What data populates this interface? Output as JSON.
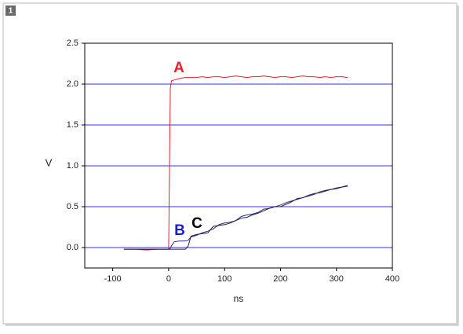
{
  "badge": "1",
  "chart_data": {
    "type": "line",
    "x_label": "ns",
    "y_label": "V",
    "x": [
      -80,
      -60,
      -40,
      -20,
      0,
      3,
      5,
      10,
      20,
      30,
      35,
      40,
      50,
      60,
      70,
      80,
      90,
      100,
      110,
      120,
      130,
      140,
      150,
      160,
      170,
      180,
      190,
      200,
      210,
      220,
      230,
      240,
      250,
      260,
      270,
      280,
      290,
      300,
      310,
      320
    ],
    "series": [
      {
        "name": "A",
        "color": "#e8202a",
        "values": [
          -0.02,
          -0.02,
          -0.03,
          -0.02,
          -0.02,
          1.95,
          2.04,
          2.05,
          2.07,
          2.08,
          2.08,
          2.08,
          2.08,
          2.09,
          2.08,
          2.09,
          2.09,
          2.08,
          2.09,
          2.1,
          2.09,
          2.08,
          2.09,
          2.09,
          2.1,
          2.09,
          2.08,
          2.09,
          2.09,
          2.08,
          2.09,
          2.1,
          2.09,
          2.09,
          2.08,
          2.09,
          2.08,
          2.09,
          2.09,
          2.08
        ]
      },
      {
        "name": "B",
        "color": "#2a2a9a",
        "values": [
          -0.02,
          -0.02,
          -0.02,
          -0.02,
          -0.02,
          -0.01,
          0.02,
          0.07,
          0.08,
          0.08,
          0.09,
          0.13,
          0.15,
          0.18,
          0.2,
          0.23,
          0.28,
          0.3,
          0.31,
          0.33,
          0.38,
          0.4,
          0.41,
          0.43,
          0.47,
          0.48,
          0.5,
          0.52,
          0.55,
          0.57,
          0.59,
          0.61,
          0.63,
          0.65,
          0.68,
          0.7,
          0.71,
          0.72,
          0.74,
          0.75
        ]
      },
      {
        "name": "C",
        "color": "#222233",
        "values": [
          -0.02,
          -0.02,
          -0.02,
          -0.02,
          -0.02,
          -0.02,
          -0.02,
          -0.02,
          -0.02,
          -0.02,
          0.02,
          0.14,
          0.16,
          0.17,
          0.18,
          0.26,
          0.27,
          0.28,
          0.3,
          0.33,
          0.36,
          0.37,
          0.4,
          0.42,
          0.45,
          0.48,
          0.5,
          0.5,
          0.53,
          0.56,
          0.6,
          0.61,
          0.64,
          0.66,
          0.67,
          0.69,
          0.71,
          0.73,
          0.74,
          0.76
        ]
      }
    ],
    "annotations": [
      {
        "text": "A",
        "color": "#e8202a"
      },
      {
        "text": "B",
        "color": "#1a1ad0"
      },
      {
        "text": "C",
        "color": "#000000"
      }
    ],
    "xlim": [
      -150,
      400
    ],
    "xticks": [
      -100,
      0,
      100,
      200,
      300,
      400
    ],
    "ylim": [
      -0.25,
      2.5
    ],
    "yticks": [
      {
        "value": 0,
        "label": "0.0"
      },
      0.5,
      {
        "value": 1,
        "label": "1.0"
      },
      1.5,
      {
        "value": 2,
        "label": "2.0"
      },
      2.5
    ],
    "grid": true,
    "grid_color": "#3030e0"
  }
}
